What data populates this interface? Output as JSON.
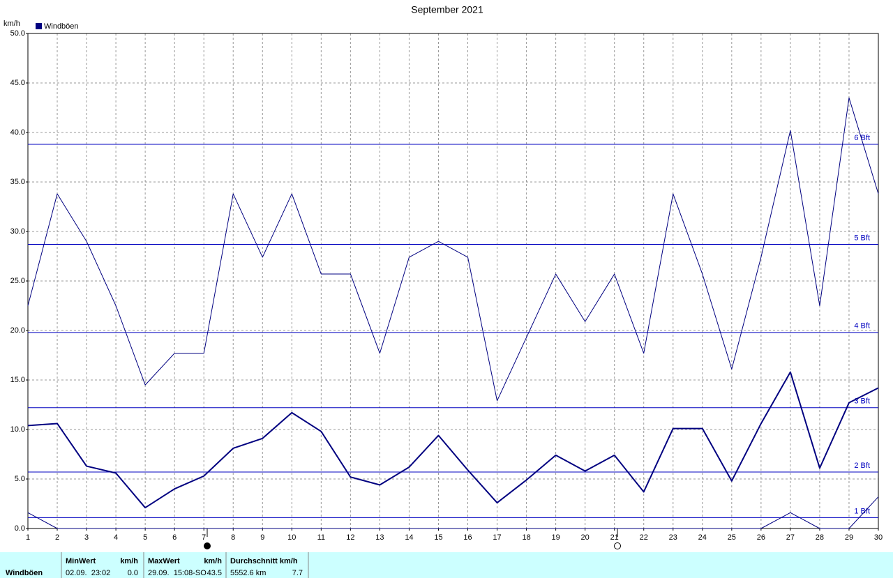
{
  "chart_data": {
    "type": "line",
    "title": "September 2021",
    "y_unit": "km/h",
    "legend": "Windböen",
    "legend_color": "#000080",
    "x": [
      1,
      2,
      3,
      4,
      5,
      6,
      7,
      8,
      9,
      10,
      11,
      12,
      13,
      14,
      15,
      16,
      17,
      18,
      19,
      20,
      21,
      22,
      23,
      24,
      25,
      26,
      27,
      28,
      29,
      30
    ],
    "xlim": [
      1,
      30
    ],
    "xticks": [
      1,
      2,
      3,
      4,
      5,
      6,
      7,
      8,
      9,
      10,
      11,
      12,
      13,
      14,
      15,
      16,
      17,
      18,
      19,
      20,
      21,
      22,
      23,
      24,
      25,
      26,
      27,
      28,
      29,
      30
    ],
    "ylim": [
      0,
      50
    ],
    "yticks": [
      {
        "value": 0,
        "label": "0.0"
      },
      {
        "value": 5,
        "label": "5.0"
      },
      {
        "value": 10,
        "label": "10.0"
      },
      {
        "value": 15,
        "label": "15.0"
      },
      {
        "value": 20,
        "label": "20.0"
      },
      {
        "value": 25,
        "label": "25.0"
      },
      {
        "value": 30,
        "label": "30.0"
      },
      {
        "value": 35,
        "label": "35.0"
      },
      {
        "value": 40,
        "label": "40.0"
      },
      {
        "value": 45,
        "label": "45.0"
      },
      {
        "value": 50,
        "label": "50.0"
      }
    ],
    "grid": true,
    "series": [
      {
        "color": "#000080",
        "line_width": 1,
        "values": [
          22.5,
          33.8,
          29.0,
          22.5,
          14.5,
          17.7,
          17.7,
          33.8,
          27.4,
          33.8,
          25.7,
          25.7,
          17.7,
          27.4,
          29.0,
          27.4,
          12.9,
          19.3,
          25.7,
          20.9,
          25.7,
          17.7,
          33.8,
          25.7,
          16.1,
          27.4,
          40.2,
          22.5,
          43.5,
          33.8
        ]
      },
      {
        "color": "#000080",
        "line_width": 2,
        "values": [
          10.4,
          10.6,
          6.3,
          5.6,
          2.1,
          4.0,
          5.3,
          8.1,
          9.1,
          11.7,
          9.8,
          5.2,
          4.4,
          6.2,
          9.4,
          5.9,
          2.6,
          4.9,
          7.4,
          5.8,
          7.4,
          3.7,
          10.1,
          10.1,
          4.8,
          10.6,
          15.8,
          6.1,
          12.7,
          14.2
        ]
      },
      {
        "color": "#000080",
        "line_width": 1,
        "values": [
          1.6,
          0,
          0,
          0,
          0,
          0,
          0,
          0,
          0,
          0,
          0,
          0,
          0,
          0,
          0,
          0,
          0,
          0,
          0,
          0,
          0,
          0,
          0,
          0,
          0,
          0,
          1.6,
          0,
          0,
          3.2
        ]
      }
    ],
    "reference_color": "#0000c0",
    "reference_lines": [
      {
        "value": 1.1,
        "label": "1 Bft"
      },
      {
        "value": 5.7,
        "label": "2 Bft"
      },
      {
        "value": 12.2,
        "label": "3 Bft"
      },
      {
        "value": 19.8,
        "label": "4 Bft"
      },
      {
        "value": 28.7,
        "label": "5 Bft"
      },
      {
        "value": 38.8,
        "label": "6 Bft"
      }
    ]
  },
  "table": {
    "row_label": "Windböen",
    "columns": [
      {
        "header": "MinWert",
        "unit": "km/h",
        "time": "02.09.  23:02",
        "value": "0.0"
      },
      {
        "header": "MaxWert",
        "unit": "km/h",
        "time": "29.09.  15:08-SO",
        "value": "43.5"
      },
      {
        "header": "Durchschnitt km/h",
        "time": "5552.6 km",
        "value": "7.7"
      }
    ]
  }
}
